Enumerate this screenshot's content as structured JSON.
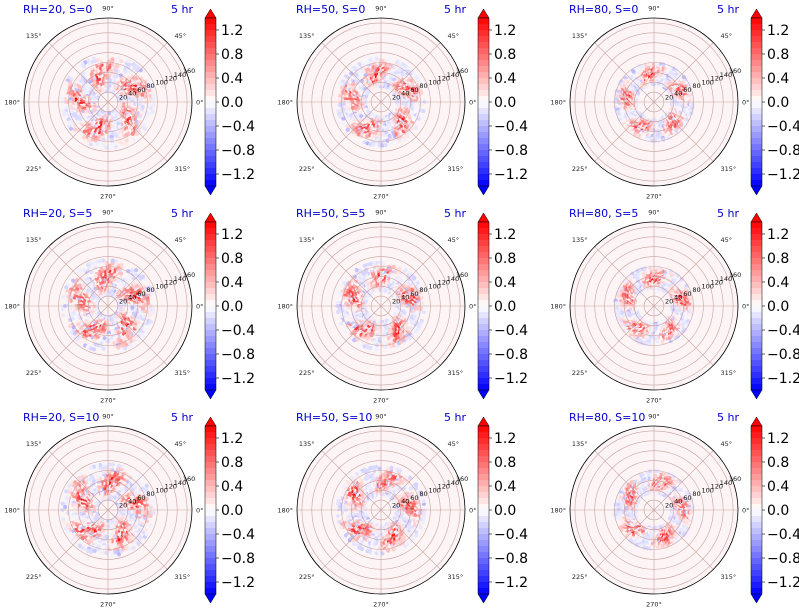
{
  "chart_data": [
    {
      "type": "polar_heatmap",
      "title": "RH=20, S=0",
      "time_label": "5 hr",
      "r_ticks": [
        20,
        40,
        60,
        80,
        100,
        120,
        140,
        160
      ],
      "theta_ticks": [
        "0°",
        "45°",
        "90°",
        "135°",
        "180°",
        "225°",
        "270°",
        "315°"
      ],
      "colorbar": {
        "cmap": "bwr",
        "range": [
          -1.4,
          1.4
        ],
        "ticks": [
          "−1.2",
          "−0.8",
          "−0.4",
          "0.0",
          "0.4",
          "0.8",
          "1.2"
        ],
        "extend": "both"
      },
      "ring": {
        "r_min": 20,
        "r_max": 95,
        "lobes": 5,
        "peak": 1.2,
        "negative_min": -0.4
      }
    },
    {
      "type": "polar_heatmap",
      "title": "RH=50, S=0",
      "time_label": "5 hr",
      "r_ticks": [
        20,
        40,
        60,
        80,
        100,
        120,
        140,
        160
      ],
      "theta_ticks": [
        "0°",
        "45°",
        "90°",
        "135°",
        "180°",
        "225°",
        "270°",
        "315°"
      ],
      "colorbar": {
        "cmap": "bwr",
        "range": [
          -1.4,
          1.4
        ],
        "ticks": [
          "−1.2",
          "−0.8",
          "−0.4",
          "0.0",
          "0.4",
          "0.8",
          "1.2"
        ],
        "extend": "both"
      },
      "ring": {
        "r_min": 30,
        "r_max": 90,
        "lobes": 5,
        "peak": 1.2,
        "negative_min": -0.4
      }
    },
    {
      "type": "polar_heatmap",
      "title": "RH=80, S=0",
      "time_label": "5 hr",
      "r_ticks": [
        20,
        40,
        60,
        80,
        100,
        120,
        140,
        160
      ],
      "theta_ticks": [
        "0°",
        "45°",
        "90°",
        "135°",
        "180°",
        "225°",
        "270°",
        "315°"
      ],
      "colorbar": {
        "cmap": "bwr",
        "range": [
          -1.4,
          1.4
        ],
        "ticks": [
          "−1.2",
          "−0.8",
          "−0.4",
          "0.0",
          "0.4",
          "0.8",
          "1.2"
        ],
        "extend": "both"
      },
      "ring": {
        "r_min": 35,
        "r_max": 80,
        "lobes": 5,
        "peak": 1.2,
        "negative_min": -0.4
      }
    },
    {
      "type": "polar_heatmap",
      "title": "RH=20, S=5",
      "time_label": "5 hr",
      "r_ticks": [
        20,
        40,
        60,
        80,
        100,
        120,
        140,
        160
      ],
      "theta_ticks": [
        "0°",
        "45°",
        "90°",
        "135°",
        "180°",
        "225°",
        "270°",
        "315°"
      ],
      "colorbar": {
        "cmap": "bwr",
        "range": [
          -1.4,
          1.4
        ],
        "ticks": [
          "−1.2",
          "−0.8",
          "−0.4",
          "0.0",
          "0.4",
          "0.8",
          "1.2"
        ],
        "extend": "both"
      },
      "ring": {
        "r_min": 20,
        "r_max": 95,
        "lobes": 5,
        "peak": 1.2,
        "negative_min": -0.4
      }
    },
    {
      "type": "polar_heatmap",
      "title": "RH=50, S=5",
      "time_label": "5 hr",
      "r_ticks": [
        20,
        40,
        60,
        80,
        100,
        120,
        140,
        160
      ],
      "theta_ticks": [
        "0°",
        "45°",
        "90°",
        "135°",
        "180°",
        "225°",
        "270°",
        "315°"
      ],
      "colorbar": {
        "cmap": "bwr",
        "range": [
          -1.4,
          1.4
        ],
        "ticks": [
          "−1.2",
          "−0.8",
          "−0.4",
          "0.0",
          "0.4",
          "0.8",
          "1.2"
        ],
        "extend": "both"
      },
      "ring": {
        "r_min": 30,
        "r_max": 90,
        "lobes": 5,
        "peak": 1.2,
        "negative_min": -0.4
      }
    },
    {
      "type": "polar_heatmap",
      "title": "RH=80, S=5",
      "time_label": "5 hr",
      "r_ticks": [
        20,
        40,
        60,
        80,
        100,
        120,
        140,
        160
      ],
      "theta_ticks": [
        "0°",
        "45°",
        "90°",
        "135°",
        "180°",
        "225°",
        "270°",
        "315°"
      ],
      "colorbar": {
        "cmap": "bwr",
        "range": [
          -1.4,
          1.4
        ],
        "ticks": [
          "−1.2",
          "−0.8",
          "−0.4",
          "0.0",
          "0.4",
          "0.8",
          "1.2"
        ],
        "extend": "both"
      },
      "ring": {
        "r_min": 35,
        "r_max": 80,
        "lobes": 5,
        "peak": 1.2,
        "negative_min": -0.4
      }
    },
    {
      "type": "polar_heatmap",
      "title": "RH=20, S=10",
      "time_label": "5 hr",
      "r_ticks": [
        20,
        40,
        60,
        80,
        100,
        120,
        140,
        160
      ],
      "theta_ticks": [
        "0°",
        "45°",
        "90°",
        "135°",
        "180°",
        "225°",
        "270°",
        "315°"
      ],
      "colorbar": {
        "cmap": "bwr",
        "range": [
          -1.4,
          1.4
        ],
        "ticks": [
          "−1.2",
          "−0.8",
          "−0.4",
          "0.0",
          "0.4",
          "0.8",
          "1.2"
        ],
        "extend": "both"
      },
      "ring": {
        "r_min": 20,
        "r_max": 95,
        "lobes": 5,
        "peak": 1.2,
        "negative_min": -0.4
      }
    },
    {
      "type": "polar_heatmap",
      "title": "RH=50, S=10",
      "time_label": "5 hr",
      "r_ticks": [
        20,
        40,
        60,
        80,
        100,
        120,
        140,
        160
      ],
      "theta_ticks": [
        "0°",
        "45°",
        "90°",
        "135°",
        "180°",
        "225°",
        "270°",
        "315°"
      ],
      "colorbar": {
        "cmap": "bwr",
        "range": [
          -1.4,
          1.4
        ],
        "ticks": [
          "−1.2",
          "−0.8",
          "−0.4",
          "0.0",
          "0.4",
          "0.8",
          "1.2"
        ],
        "extend": "both"
      },
      "ring": {
        "r_min": 30,
        "r_max": 90,
        "lobes": 5,
        "peak": 1.2,
        "negative_min": -0.4
      }
    },
    {
      "type": "polar_heatmap",
      "title": "RH=80, S=10",
      "time_label": "5 hr",
      "r_ticks": [
        20,
        40,
        60,
        80,
        100,
        120,
        140,
        160
      ],
      "theta_ticks": [
        "0°",
        "45°",
        "90°",
        "135°",
        "180°",
        "225°",
        "270°",
        "315°"
      ],
      "colorbar": {
        "cmap": "bwr",
        "range": [
          -1.4,
          1.4
        ],
        "ticks": [
          "−1.2",
          "−0.8",
          "−0.4",
          "0.0",
          "0.4",
          "0.8",
          "1.2"
        ],
        "extend": "both"
      },
      "ring": {
        "r_min": 35,
        "r_max": 80,
        "lobes": 5,
        "peak": 1.2,
        "negative_min": -0.4
      }
    }
  ],
  "colors": {
    "title": "#0000cc",
    "negative_end": "#0000ff",
    "zero": "#ffffff",
    "positive_end": "#ff0000",
    "grid": "#c8a0a0",
    "axis_frame": "#000000"
  }
}
